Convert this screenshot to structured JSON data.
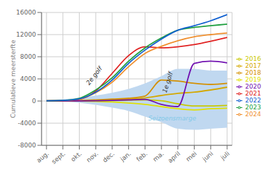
{
  "chart_data": {
    "type": "line",
    "categories": [
      "aug.",
      "sept.",
      "okt.",
      "nov.",
      "dec.",
      "jan.",
      "feb.",
      "ma.",
      "april",
      "mei",
      "juni",
      "juli"
    ],
    "ylabel": "Cumulatieve meersterfte",
    "ylim": [
      -8000,
      16000
    ],
    "yticks": [
      -8000,
      -4000,
      0,
      4000,
      8000,
      12000,
      16000
    ],
    "grid": true,
    "legend": "right",
    "band": {
      "upper": [
        200,
        300,
        600,
        1000,
        1500,
        2200,
        3200,
        4500,
        5800,
        5800,
        5500,
        5500
      ],
      "lower": [
        0,
        -100,
        -300,
        -700,
        -1200,
        -1800,
        -2800,
        -3800,
        -5000,
        -5200,
        -5000,
        -4800
      ],
      "color": "#c0d8f0"
    },
    "series": [
      {
        "name": "2019",
        "color": "#e0e000",
        "values": [
          0,
          0,
          -20,
          -80,
          -180,
          -350,
          -600,
          -1000,
          -1400,
          -1600,
          -1400,
          -1300
        ]
      },
      {
        "name": "2016",
        "color": "#c8c800",
        "values": [
          0,
          10,
          20,
          40,
          80,
          150,
          200,
          50,
          -500,
          -900,
          -900,
          -800
        ]
      },
      {
        "name": "2017",
        "color": "#d4a800",
        "values": [
          0,
          20,
          50,
          100,
          200,
          350,
          550,
          1000,
          1400,
          1600,
          2000,
          2500
        ]
      },
      {
        "name": "2018",
        "color": "#d49000",
        "values": [
          0,
          30,
          80,
          200,
          350,
          500,
          900,
          3800,
          3600,
          3200,
          3000,
          3200
        ]
      },
      {
        "name": "2020",
        "color": "#7010b0",
        "values": [
          0,
          10,
          20,
          50,
          100,
          200,
          300,
          -600,
          -1000,
          6800,
          7200,
          6900
        ]
      },
      {
        "name": "2021",
        "color": "#e02020",
        "values": [
          50,
          80,
          300,
          1800,
          5000,
          8200,
          9800,
          9600,
          9800,
          10200,
          10800,
          11500
        ]
      },
      {
        "name": "2024",
        "color": "#f09030",
        "values": [
          50,
          100,
          350,
          1500,
          3400,
          6200,
          8600,
          9900,
          10900,
          11600,
          12000,
          12300
        ]
      },
      {
        "name": "2023",
        "color": "#20a040",
        "values": [
          50,
          120,
          500,
          2000,
          4200,
          7200,
          9600,
          11400,
          12800,
          13300,
          13600,
          13900
        ]
      },
      {
        "name": "2022",
        "color": "#1060d0",
        "values": [
          50,
          100,
          400,
          1600,
          3800,
          6800,
          9200,
          11200,
          12800,
          13600,
          14500,
          15600
        ]
      }
    ],
    "annotations": [
      {
        "text": "2e golf",
        "x": 2.6,
        "y": 2800
      },
      {
        "text": "1e golf",
        "x": 7.3,
        "y": 1400
      },
      {
        "text": "Seizoensmarge",
        "x": 6.2,
        "y": -3200,
        "color": "#80c8e8"
      }
    ]
  }
}
